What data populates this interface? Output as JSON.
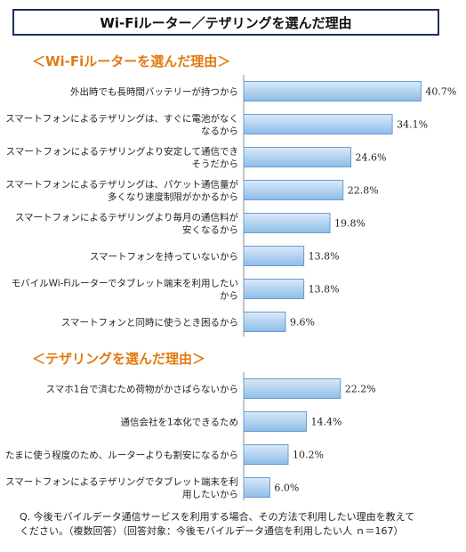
{
  "title": "Wi-Fiルーター／テザリングを選んだ理由",
  "footnote_lines": [
    "Q. 今後モバイルデータ通信サービスを利用する場合、その方法で利用したい理由を教えて",
    "ください。（複数回答）（回答対象：今後モバイルデータ通信を利用したい人 ｎ＝167）"
  ],
  "colors": {
    "bar_top": "#dbe9f8",
    "bar_bottom": "#8cbde8",
    "bar_stroke": "#6a9bd0",
    "section_title": "#e07a10",
    "title_border": "#1f2f5f"
  },
  "chart_data": [
    {
      "type": "bar",
      "orientation": "horizontal",
      "title": "＜Wi-Fiルーターを選んだ理由＞",
      "unit": "%",
      "categories": [
        [
          "外出時でも長時間バッテリーが持つから"
        ],
        [
          "スマートフォンによるテザリングは、すぐに電池がなく",
          "なるから"
        ],
        [
          "スマートフォンによるテザリングより安定して通信でき",
          "そうだから"
        ],
        [
          "スマートフォンによるテザリングは、パケット通信量が",
          "多くなり速度制限がかかるから"
        ],
        [
          "スマートフォンによるテザリングより毎月の通信料が",
          "安くなるから"
        ],
        [
          "スマートフォンを持っていないから"
        ],
        [
          "モバイルWi-Fiルーターでタブレット端末を利用したい",
          "から"
        ],
        [
          "スマートフォンと同時に使うとき困るから"
        ]
      ],
      "values": [
        40.7,
        34.1,
        24.6,
        22.8,
        19.8,
        13.8,
        13.8,
        9.6
      ],
      "labels": [
        "40.7%",
        "34.1%",
        "24.6%",
        "22.8%",
        "19.8%",
        "13.8%",
        "13.8%",
        "9.6%"
      ],
      "xlim": [
        0,
        45
      ]
    },
    {
      "type": "bar",
      "orientation": "horizontal",
      "title": "＜テザリングを選んだ理由＞",
      "unit": "%",
      "categories": [
        [
          "スマホ1台で済むため荷物がかさばらないから"
        ],
        [
          "通信会社を1本化できるため"
        ],
        [
          "たまに使う程度のため、ルーターよりも割安になるから"
        ],
        [
          "スマートフォンによるテザリングでタブレット端末を利",
          "用したいから"
        ]
      ],
      "values": [
        22.2,
        14.4,
        10.2,
        6.0
      ],
      "labels": [
        "22.2%",
        "14.4%",
        "10.2%",
        "6.0%"
      ],
      "xlim": [
        0,
        45
      ]
    }
  ]
}
